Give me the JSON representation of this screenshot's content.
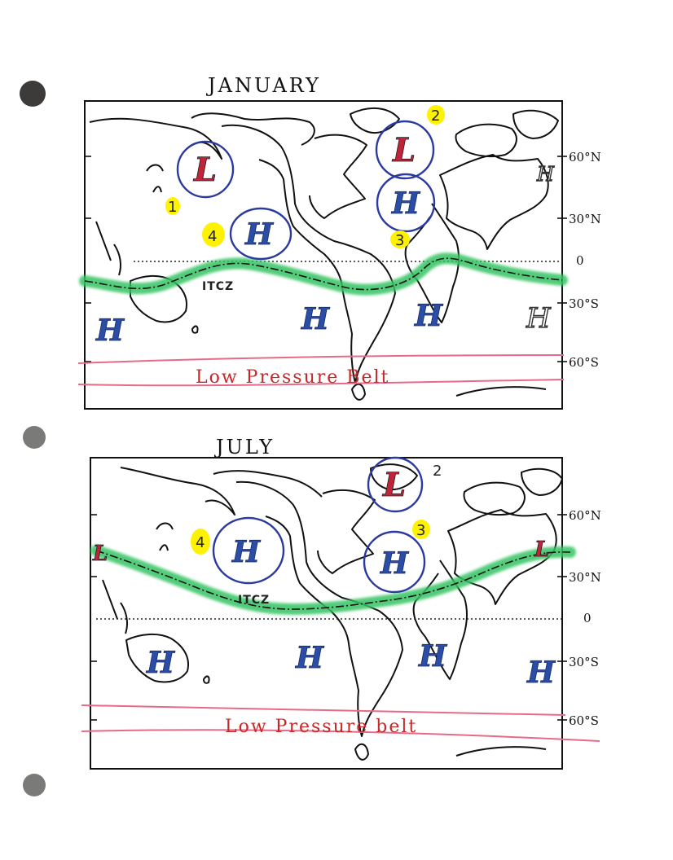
{
  "maps": [
    {
      "title": "JANUARY",
      "lat_labels": {
        "lat60n": "60°N",
        "lat30n": "30°N",
        "eq": "0",
        "lat30s": "30°S",
        "lat60s": "60°S"
      },
      "itcz_label": "ITCZ",
      "belt_label": "Low Pressure Belt",
      "circled": [
        {
          "symbol": "L",
          "number": "1"
        },
        {
          "symbol": "L",
          "number": "2"
        },
        {
          "symbol": "H",
          "number": "3"
        },
        {
          "symbol": "H",
          "number": "4"
        }
      ],
      "other_highs": [
        "H",
        "H",
        "H",
        "H",
        "H"
      ]
    },
    {
      "title": "JULY",
      "lat_labels": {
        "lat60n": "60°N",
        "lat30n": "30°N",
        "eq": "0",
        "lat30s": "30°S",
        "lat60s": "60°S"
      },
      "itcz_label": "ITCZ",
      "belt_label": "Low Pressure belt",
      "circled": [
        {
          "symbol": "L",
          "number": "2"
        },
        {
          "symbol": "H",
          "number": "3"
        },
        {
          "symbol": "H",
          "number": "4"
        }
      ],
      "thermal_lows": [
        "L",
        "L"
      ],
      "other_highs": [
        "H",
        "H",
        "H",
        "H"
      ]
    }
  ],
  "colors": {
    "low": "#c0243b",
    "high": "#2a4ea8",
    "circle": "#2b3a9e",
    "itcz_band": "#35c463",
    "belt_lines": "#e86a8a",
    "number_highlight": "#fff200",
    "binder_hole": "#7a7a78"
  }
}
